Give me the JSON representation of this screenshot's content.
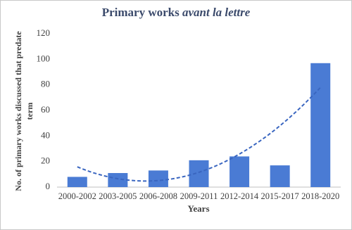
{
  "chart_data": {
    "type": "bar",
    "title": [
      "Primary works",
      "avant la lettre"
    ],
    "x_label": "Years",
    "y_label": [
      "No. of primary works discussed that predate",
      "term"
    ],
    "categories": [
      "2000-2002",
      "2003-2005",
      "2006-2008",
      "2009-2011",
      "2012-2014",
      "2015-2017",
      "2018-2020"
    ],
    "values": [
      8,
      11,
      13,
      21,
      24,
      17,
      97
    ],
    "color": "#4a7bd4",
    "ylim": [
      0,
      120
    ],
    "yticks": [
      0,
      20,
      40,
      60,
      80,
      100,
      120
    ],
    "grid": false,
    "trendline": {
      "type": "polynomial",
      "order": 2,
      "color": "#3a66c0",
      "dashed": true
    }
  }
}
